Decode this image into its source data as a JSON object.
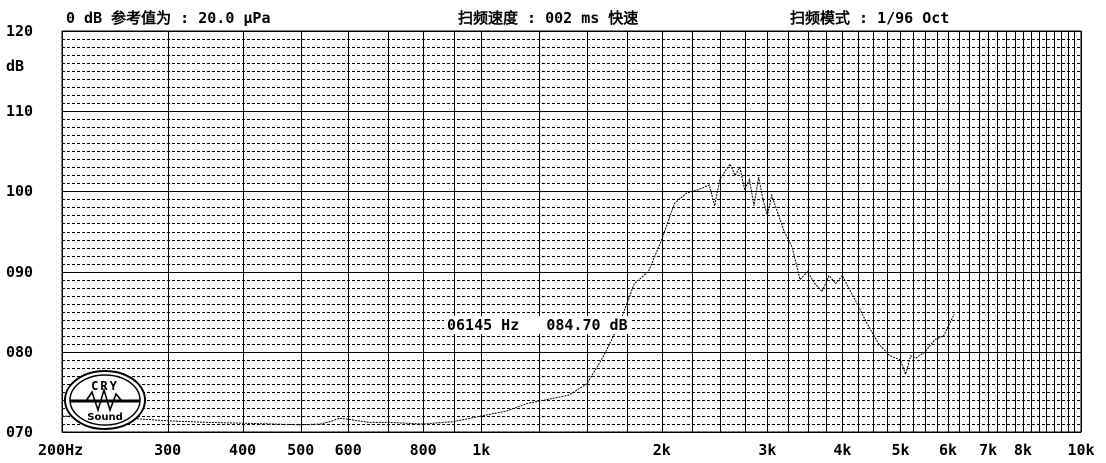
{
  "header": {
    "reference": "0 dB 参考值为 :  20.0 μPa",
    "sweep_speed": "扫频速度 : 002 ms 快速",
    "sweep_mode": "扫频模式 : 1/96  Oct"
  },
  "cursor": {
    "frequency_label": "06145 Hz",
    "level_label": "084.70 dB"
  },
  "logo": {
    "text_top": "CRY",
    "text_bottom": "Sound"
  },
  "chart_data": {
    "type": "line",
    "xscale": "log",
    "xlim": [
      200,
      10000
    ],
    "ylim": [
      70,
      120
    ],
    "ylabel": "dB",
    "grid": true,
    "y_ticks": [
      {
        "value": 120,
        "label": "120"
      },
      {
        "value": 110,
        "label": "110"
      },
      {
        "value": 100,
        "label": "100"
      },
      {
        "value": 90,
        "label": "090"
      },
      {
        "value": 80,
        "label": "080"
      },
      {
        "value": 70,
        "label": "070"
      }
    ],
    "x_ticks": [
      {
        "value": 200,
        "label": "200Hz"
      },
      {
        "value": 300,
        "label": "300"
      },
      {
        "value": 400,
        "label": "400"
      },
      {
        "value": 500,
        "label": "500"
      },
      {
        "value": 600,
        "label": "600"
      },
      {
        "value": 800,
        "label": "800"
      },
      {
        "value": 1000,
        "label": "1k"
      },
      {
        "value": 2000,
        "label": "2k"
      },
      {
        "value": 3000,
        "label": "3k"
      },
      {
        "value": 4000,
        "label": "4k"
      },
      {
        "value": 5000,
        "label": "5k"
      },
      {
        "value": 6000,
        "label": "6k"
      },
      {
        "value": 7000,
        "label": "7k"
      },
      {
        "value": 8000,
        "label": "8k"
      },
      {
        "value": 10000,
        "label": "10k"
      }
    ],
    "series": [
      {
        "color": "#000000",
        "x": [
          200,
          250,
          300,
          350,
          400,
          450,
          500,
          540,
          560,
          580,
          600,
          650,
          700,
          800,
          900,
          1000,
          1100,
          1200,
          1300,
          1400,
          1500,
          1600,
          1700,
          1800,
          1900,
          2000,
          2100,
          2200,
          2300,
          2400,
          2450,
          2500,
          2550,
          2600,
          2650,
          2700,
          2750,
          2800,
          2850,
          2900,
          2950,
          3000,
          3050,
          3100,
          3200,
          3300,
          3400,
          3500,
          3600,
          3700,
          3800,
          3900,
          4000,
          4200,
          4400,
          4600,
          4800,
          5000,
          5100,
          5200,
          5300,
          5500,
          5700,
          5900,
          6145
        ],
        "y": [
          72.0,
          71.8,
          71.4,
          71.2,
          71.1,
          71.0,
          70.9,
          71.0,
          71.3,
          71.7,
          71.6,
          71.2,
          71.2,
          71.0,
          71.3,
          72.0,
          72.6,
          73.6,
          74.1,
          74.6,
          76.0,
          79.5,
          83.5,
          88.5,
          90.0,
          94.0,
          98.5,
          99.8,
          100.2,
          100.8,
          98.2,
          101.5,
          102.5,
          103.4,
          102.0,
          103.0,
          100.2,
          101.5,
          98.2,
          101.8,
          99.0,
          97.0,
          99.5,
          98.0,
          95.0,
          93.0,
          89.0,
          90.0,
          88.5,
          87.5,
          89.5,
          88.5,
          89.5,
          86.5,
          83.5,
          81.0,
          79.5,
          79.0,
          77.2,
          79.5,
          79.2,
          80.0,
          81.5,
          82.0,
          84.7
        ]
      }
    ]
  }
}
